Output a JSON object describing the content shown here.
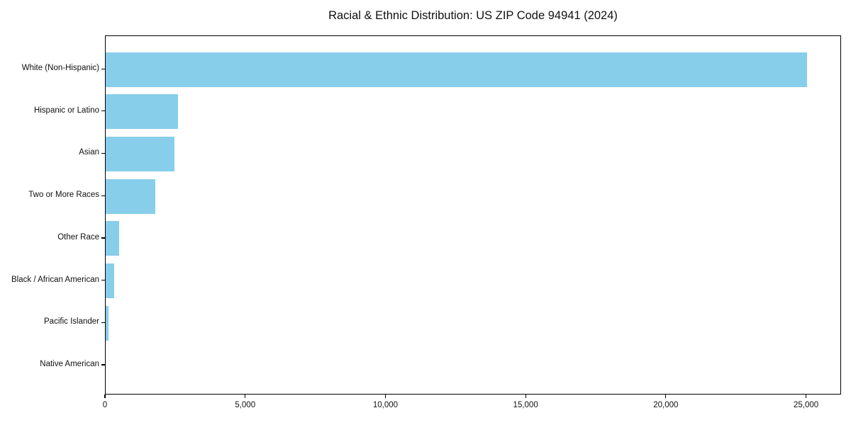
{
  "chart_data": {
    "type": "bar",
    "orientation": "horizontal",
    "title": "Racial & Ethnic Distribution: US ZIP Code 94941 (2024)",
    "categories": [
      "White (Non-Hispanic)",
      "Hispanic or Latino",
      "Asian",
      "Two or More Races",
      "Other Race",
      "Black / African American",
      "Pacific Islander",
      "Native American"
    ],
    "values": [
      25000,
      2580,
      2450,
      1770,
      490,
      305,
      110,
      0
    ],
    "xlim": [
      0,
      26250
    ],
    "xticks": [
      0,
      5000,
      10000,
      15000,
      20000,
      25000
    ],
    "xtick_labels": [
      "0",
      "5,000",
      "10,000",
      "15,000",
      "20,000",
      "25,000"
    ],
    "bar_color": "#87CEEB",
    "background_color": "#ffffff",
    "spine_color": "#000000",
    "grid": false,
    "legend": false,
    "xlabel": "",
    "ylabel": ""
  }
}
